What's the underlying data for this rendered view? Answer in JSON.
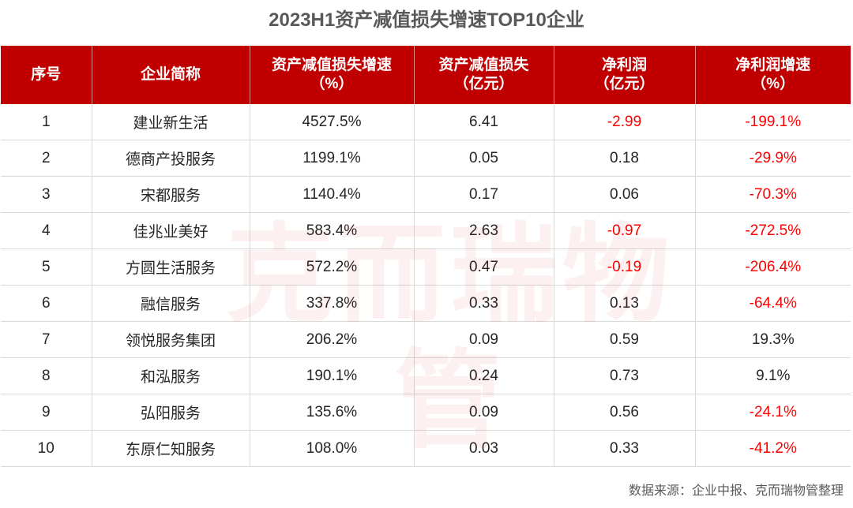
{
  "chart_data": {
    "type": "table",
    "title": "2023H1资产减值损失增速TOP10企业",
    "columns": [
      "序号",
      "企业简称",
      "资产减值损失增速\n（%）",
      "资产减值损失\n（亿元）",
      "净利润\n（亿元）",
      "净利润增速\n（%）"
    ],
    "rows": [
      [
        "1",
        "建业新生活",
        "4527.5%",
        "6.41",
        "-2.99",
        "-199.1%"
      ],
      [
        "2",
        "德商产投服务",
        "1199.1%",
        "0.05",
        "0.18",
        "-29.9%"
      ],
      [
        "3",
        "宋都服务",
        "1140.4%",
        "0.17",
        "0.06",
        "-70.3%"
      ],
      [
        "4",
        "佳兆业美好",
        "583.4%",
        "2.63",
        "-0.97",
        "-272.5%"
      ],
      [
        "5",
        "方圆生活服务",
        "572.2%",
        "0.47",
        "-0.19",
        "-206.4%"
      ],
      [
        "6",
        "融信服务",
        "337.8%",
        "0.33",
        "0.13",
        "-64.4%"
      ],
      [
        "7",
        "领悦服务集团",
        "206.2%",
        "0.09",
        "0.59",
        "19.3%"
      ],
      [
        "8",
        "和泓服务",
        "190.1%",
        "0.24",
        "0.73",
        "9.1%"
      ],
      [
        "9",
        "弘阳服务",
        "135.6%",
        "0.09",
        "0.56",
        "-24.1%"
      ],
      [
        "10",
        "东原仁知服务",
        "108.0%",
        "0.03",
        "0.33",
        "-41.2%"
      ]
    ],
    "negative_color": "#ff0000",
    "header_color": "#c00000"
  },
  "watermark": "克而瑞物管",
  "source": "数据来源：企业中报、克而瑞物管整理"
}
